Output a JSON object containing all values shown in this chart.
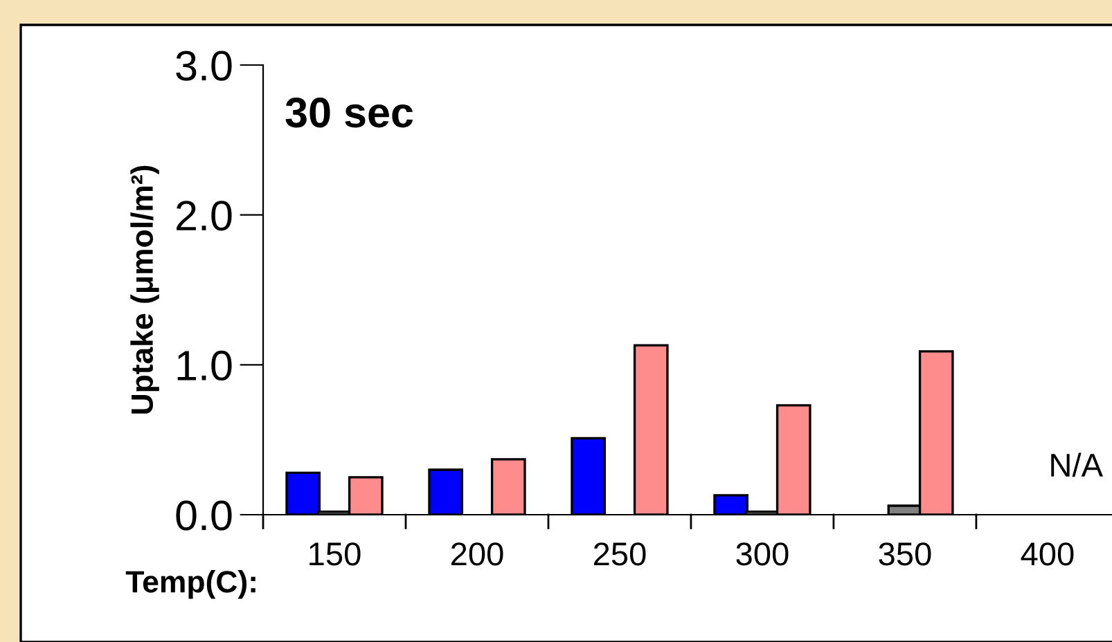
{
  "chart_data": {
    "type": "bar",
    "xlabel": "Temp(C):",
    "ylabel": "Uptake (μmol/m²)",
    "categories": [
      "150",
      "200",
      "250",
      "300",
      "350",
      "400"
    ],
    "series": [
      {
        "color": "#0000ff",
        "values": [
          0.28,
          0.3,
          0.51,
          0.13,
          null,
          null
        ]
      },
      {
        "color": "#808080",
        "values": [
          0.02,
          null,
          null,
          0.02,
          0.06,
          null
        ]
      },
      {
        "color": "#ff8c8c",
        "values": [
          0.25,
          0.37,
          1.13,
          0.73,
          1.09,
          null
        ]
      }
    ],
    "ylim": [
      0,
      3
    ],
    "yticks": [
      {
        "value": 0,
        "label": "0.0"
      },
      {
        "value": 1,
        "label": "1.0"
      },
      {
        "value": 2,
        "label": "2.0"
      },
      {
        "value": 3,
        "label": "3.0"
      }
    ],
    "annotations": [
      "30 sec",
      "N/A"
    ],
    "grid": false,
    "legend": false
  }
}
